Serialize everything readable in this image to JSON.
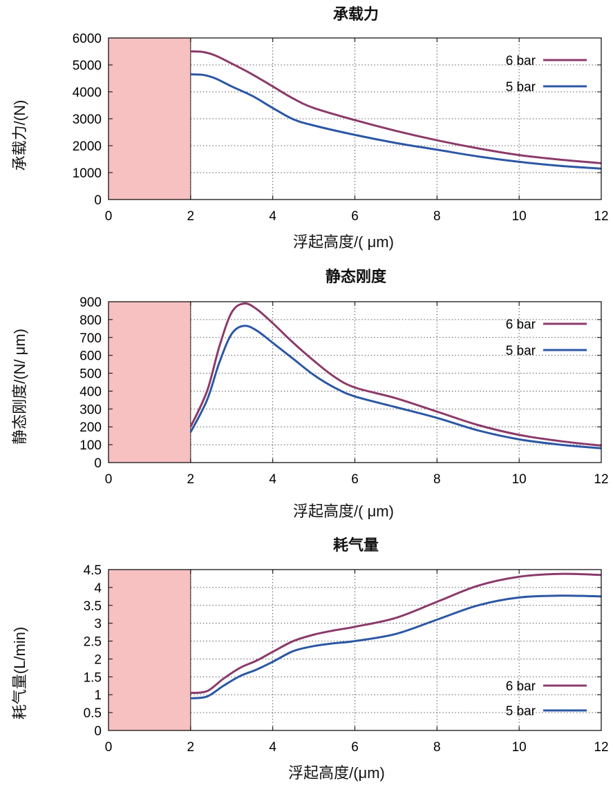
{
  "colors": {
    "s6": "#8b3a6a",
    "s5": "#2b57a4",
    "shade": "#f7c1c1"
  },
  "chart_data": [
    {
      "type": "line",
      "title": "承载力",
      "xlabel": "浮起高度/( μm)",
      "ylabel": "承载力/(N)",
      "xlim": [
        0,
        12
      ],
      "ylim": [
        0,
        6000
      ],
      "xticks": [
        0,
        2,
        4,
        6,
        8,
        10,
        12
      ],
      "yticks": [
        0,
        1000,
        2000,
        3000,
        4000,
        5000,
        6000
      ],
      "ytick_labels": [
        "0",
        "1000",
        "2000",
        "3000",
        "4000",
        "5000",
        "6000"
      ],
      "grid": true,
      "legend_position": "top-right",
      "shaded_region": [
        0,
        2
      ],
      "series": [
        {
          "name": "6 bar",
          "x": [
            2,
            2.3,
            2.6,
            3,
            3.5,
            4,
            4.5,
            5,
            6,
            7,
            8,
            9,
            10,
            11,
            12
          ],
          "y": [
            5500,
            5480,
            5350,
            5050,
            4650,
            4200,
            3750,
            3400,
            2950,
            2550,
            2200,
            1900,
            1650,
            1480,
            1350
          ]
        },
        {
          "name": "5 bar",
          "x": [
            2,
            2.3,
            2.6,
            3,
            3.5,
            4,
            4.5,
            5,
            6,
            7,
            8,
            9,
            10,
            11,
            12
          ],
          "y": [
            4650,
            4630,
            4500,
            4200,
            3850,
            3400,
            2980,
            2750,
            2400,
            2100,
            1850,
            1600,
            1400,
            1250,
            1150
          ]
        }
      ]
    },
    {
      "type": "line",
      "title": "静态刚度",
      "xlabel": "浮起高度/( μm)",
      "ylabel": "静态刚度/(N/ μm)",
      "xlim": [
        0,
        12
      ],
      "ylim": [
        0,
        900
      ],
      "xticks": [
        0,
        2,
        4,
        6,
        8,
        10,
        12
      ],
      "yticks": [
        0,
        100,
        200,
        300,
        400,
        500,
        600,
        700,
        800,
        900
      ],
      "ytick_labels": [
        "0",
        "100",
        "200",
        "300",
        "400",
        "500",
        "600",
        "700",
        "800",
        "900"
      ],
      "grid": true,
      "legend_position": "top-right",
      "shaded_region": [
        0,
        2
      ],
      "series": [
        {
          "name": "6 bar",
          "x": [
            2,
            2.4,
            2.7,
            3,
            3.3,
            3.6,
            4,
            4.5,
            5,
            5.5,
            6,
            7,
            8,
            9,
            10,
            11,
            12
          ],
          "y": [
            200,
            400,
            650,
            840,
            890,
            860,
            780,
            670,
            570,
            480,
            420,
            360,
            285,
            210,
            155,
            120,
            95
          ]
        },
        {
          "name": "5 bar",
          "x": [
            2,
            2.4,
            2.7,
            3,
            3.3,
            3.6,
            4,
            4.5,
            5,
            5.5,
            6,
            7,
            8,
            9,
            10,
            11,
            12
          ],
          "y": [
            170,
            350,
            560,
            720,
            765,
            740,
            670,
            580,
            490,
            420,
            370,
            310,
            250,
            180,
            130,
            100,
            80
          ]
        }
      ]
    },
    {
      "type": "line",
      "title": "耗气量",
      "xlabel": "浮起高度/(μm)",
      "ylabel": "耗气量(L/min)",
      "xlim": [
        0,
        12
      ],
      "ylim": [
        0,
        4.5
      ],
      "xticks": [
        0,
        2,
        4,
        6,
        8,
        10,
        12
      ],
      "yticks": [
        0,
        0.5,
        1,
        1.5,
        2,
        2.5,
        3,
        3.5,
        4,
        4.5
      ],
      "ytick_labels": [
        "0",
        "0.5",
        "1",
        "1.5",
        "2",
        "2.5",
        "3",
        "3.5",
        "4",
        "4.5"
      ],
      "grid": true,
      "legend_position": "bottom-right",
      "shaded_region": [
        0,
        2
      ],
      "series": [
        {
          "name": "6 bar",
          "x": [
            2,
            2.4,
            2.8,
            3.2,
            3.6,
            4,
            4.5,
            5,
            5.5,
            6,
            7,
            8,
            9,
            10,
            11,
            12
          ],
          "y": [
            1.05,
            1.1,
            1.45,
            1.75,
            1.95,
            2.2,
            2.5,
            2.68,
            2.8,
            2.9,
            3.15,
            3.6,
            4.05,
            4.3,
            4.38,
            4.35
          ]
        },
        {
          "name": "5 bar",
          "x": [
            2,
            2.4,
            2.8,
            3.2,
            3.6,
            4,
            4.5,
            5,
            5.5,
            6,
            7,
            8,
            9,
            10,
            11,
            12
          ],
          "y": [
            0.9,
            0.95,
            1.25,
            1.52,
            1.7,
            1.92,
            2.22,
            2.36,
            2.44,
            2.5,
            2.7,
            3.1,
            3.5,
            3.72,
            3.77,
            3.75
          ]
        }
      ]
    }
  ]
}
